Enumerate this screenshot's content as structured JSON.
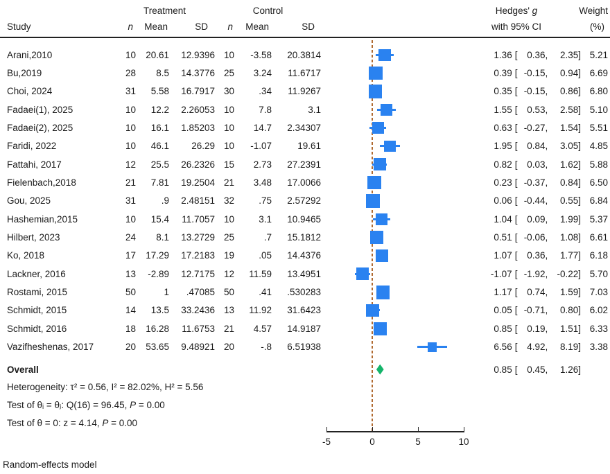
{
  "header": {
    "treatment_group": "Treatment",
    "control_group": "Control",
    "study_col": "Study",
    "n_col": "n",
    "mean_col": "Mean",
    "sd_col": "SD",
    "hedges_pre": "Hedges'",
    "hedges_g": "g",
    "ci_col": "with 95% CI",
    "weight_col": "Weight",
    "weight_unit": "(%)"
  },
  "chart_data": {
    "type": "scatter",
    "subtype": "forest-plot",
    "effect_measure": "Hedges' g with 95% CI",
    "xlim": [
      -5,
      10
    ],
    "x_ticks": [
      -5,
      0,
      5,
      10
    ],
    "x_tick_labels": [
      "-5",
      "0",
      "5",
      "10"
    ],
    "refline_x": 0,
    "fmt": {
      "open": "[",
      "sep": ",",
      "close": "]"
    },
    "colors": {
      "marker": "#2a82f0",
      "overall_diamond": "#14b46a",
      "refline": "#b06a30"
    },
    "studies": [
      {
        "study": "Arani,2010",
        "tn": "10",
        "tmean": "20.61",
        "tsd": "12.9396",
        "cn": "10",
        "cmean": "-3.58",
        "csd": "20.3814",
        "es": "1.36",
        "lo": "0.36",
        "hi": "2.35",
        "w": "5.21"
      },
      {
        "study": "Bu,2019",
        "tn": "28",
        "tmean": "8.5",
        "tsd": "14.3776",
        "cn": "25",
        "cmean": "3.24",
        "csd": "11.6717",
        "es": "0.39",
        "lo": "-0.15",
        "hi": "0.94",
        "w": "6.69"
      },
      {
        "study": "Choi, 2024",
        "tn": "31",
        "tmean": "5.58",
        "tsd": "16.7917",
        "cn": "30",
        "cmean": ".34",
        "csd": "11.9267",
        "es": "0.35",
        "lo": "-0.15",
        "hi": "0.86",
        "w": "6.80"
      },
      {
        "study": "Fadaei(1), 2025",
        "tn": "10",
        "tmean": "12.2",
        "tsd": "2.26053",
        "cn": "10",
        "cmean": "7.8",
        "csd": "3.1",
        "es": "1.55",
        "lo": "0.53",
        "hi": "2.58",
        "w": "5.10"
      },
      {
        "study": "Fadaei(2), 2025",
        "tn": "10",
        "tmean": "16.1",
        "tsd": "1.85203",
        "cn": "10",
        "cmean": "14.7",
        "csd": "2.34307",
        "es": "0.63",
        "lo": "-0.27",
        "hi": "1.54",
        "w": "5.51"
      },
      {
        "study": "Faridi, 2022",
        "tn": "10",
        "tmean": "46.1",
        "tsd": "26.29",
        "cn": "10",
        "cmean": "-1.07",
        "csd": "19.61",
        "es": "1.95",
        "lo": "0.84",
        "hi": "3.05",
        "w": "4.85"
      },
      {
        "study": "Fattahi, 2017",
        "tn": "12",
        "tmean": "25.5",
        "tsd": "26.2326",
        "cn": "15",
        "cmean": "2.73",
        "csd": "27.2391",
        "es": "0.82",
        "lo": "0.03",
        "hi": "1.62",
        "w": "5.88"
      },
      {
        "study": "Fielenbach,2018",
        "tn": "21",
        "tmean": "7.81",
        "tsd": "19.2504",
        "cn": "21",
        "cmean": "3.48",
        "csd": "17.0066",
        "es": "0.23",
        "lo": "-0.37",
        "hi": "0.84",
        "w": "6.50"
      },
      {
        "study": "Gou, 2025",
        "tn": "31",
        "tmean": ".9",
        "tsd": "2.48151",
        "cn": "32",
        "cmean": ".75",
        "csd": "2.57292",
        "es": "0.06",
        "lo": "-0.44",
        "hi": "0.55",
        "w": "6.84"
      },
      {
        "study": "Hashemian,2015",
        "tn": "10",
        "tmean": "15.4",
        "tsd": "11.7057",
        "cn": "10",
        "cmean": "3.1",
        "csd": "10.9465",
        "es": "1.04",
        "lo": "0.09",
        "hi": "1.99",
        "w": "5.37"
      },
      {
        "study": "Hilbert, 2023",
        "tn": "24",
        "tmean": "8.1",
        "tsd": "13.2729",
        "cn": "25",
        "cmean": ".7",
        "csd": "15.1812",
        "es": "0.51",
        "lo": "-0.06",
        "hi": "1.08",
        "w": "6.61"
      },
      {
        "study": "Ko, 2018",
        "tn": "17",
        "tmean": "17.29",
        "tsd": "17.2183",
        "cn": "19",
        "cmean": ".05",
        "csd": "14.4376",
        "es": "1.07",
        "lo": "0.36",
        "hi": "1.77",
        "w": "6.18"
      },
      {
        "study": "Lackner, 2016",
        "tn": "13",
        "tmean": "-2.89",
        "tsd": "12.7175",
        "cn": "12",
        "cmean": "11.59",
        "csd": "13.4951",
        "es": "-1.07",
        "lo": "-1.92",
        "hi": "-0.22",
        "w": "5.70"
      },
      {
        "study": "Rostami, 2015",
        "tn": "50",
        "tmean": "1",
        "tsd": ".47085",
        "cn": "50",
        "cmean": ".41",
        "csd": ".530283",
        "es": "1.17",
        "lo": "0.74",
        "hi": "1.59",
        "w": "7.03"
      },
      {
        "study": "Schmidt, 2015",
        "tn": "14",
        "tmean": "13.5",
        "tsd": "33.2436",
        "cn": "13",
        "cmean": "11.92",
        "csd": "31.6423",
        "es": "0.05",
        "lo": "-0.71",
        "hi": "0.80",
        "w": "6.02"
      },
      {
        "study": "Schmidt, 2016",
        "tn": "18",
        "tmean": "16.28",
        "tsd": "11.6753",
        "cn": "21",
        "cmean": "4.57",
        "csd": "14.9187",
        "es": "0.85",
        "lo": "0.19",
        "hi": "1.51",
        "w": "6.33"
      },
      {
        "study": "Vazifheshenas, 2017",
        "tn": "20",
        "tmean": "53.65",
        "tsd": "9.48921",
        "cn": "20",
        "cmean": "-.8",
        "csd": "6.51938",
        "es": "6.56",
        "lo": "4.92",
        "hi": "8.19",
        "w": "3.38"
      }
    ],
    "overall": {
      "label": "Overall",
      "es": "0.85",
      "lo": "0.45",
      "hi": "1.26"
    }
  },
  "stats": {
    "heterogeneity": "Heterogeneity: τ² = 0.56, I² = 82.02%, H² = 5.56",
    "test_groups_pre": "Test of θᵢ = θⱼ: Q(16) = 96.45, ",
    "test_groups_p": "P",
    "test_groups_post": " = 0.00",
    "test_zero_pre": "Test of θ = 0: z = 4.14, ",
    "test_zero_p": "P",
    "test_zero_post": " = 0.00"
  },
  "footer": {
    "model": "Random-effects model"
  }
}
